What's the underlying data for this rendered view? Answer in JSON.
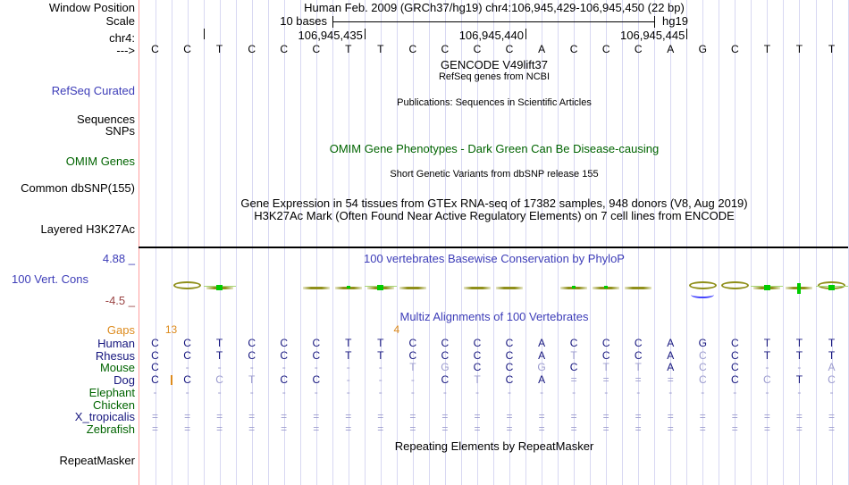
{
  "header": {
    "title": "Human Feb. 2009 (GRCh37/hg19)   chr4:106,945,429-106,945,450 (22 bp)",
    "scale_text": "10 bases",
    "assembly": "hg19",
    "ruler_ticks": [
      {
        "at": 2,
        "label": ""
      },
      {
        "at": 7,
        "label": "106,945,435"
      },
      {
        "at": 12,
        "label": "106,945,440"
      },
      {
        "at": 17,
        "label": "106,945,445"
      }
    ],
    "sequence": "CCTCCCTTCCCCACCCAGCTTT"
  },
  "labels": {
    "window_position": "Window Position",
    "scale": "Scale",
    "chrom": "chr4:",
    "strand": "--->",
    "refseq_curated": "RefSeq Curated",
    "sequences": "Sequences",
    "snps": "SNPs",
    "omim_genes": "OMIM Genes",
    "common_dbsnp": "Common dbSNP(155)",
    "layered_h3k27ac": "Layered H3K27Ac",
    "cons_upper": "4.88 _",
    "cons_name": "100 Vert. Cons",
    "cons_lower": "-4.5 _",
    "repeatmasker": "RepeatMasker"
  },
  "center_texts": {
    "gencode": "GENCODE V49lift37",
    "refseq_sub": "RefSeq genes from NCBI",
    "publications": "Publications: Sequences in Scientific Articles",
    "omim_title": "OMIM Gene Phenotypes - Dark Green Can Be Disease-causing",
    "dbsnp_title": "Short Genetic Variants from dbSNP release 155",
    "gtex_title": "Gene Expression in 54 tissues from GTEx RNA-seq of 17382 samples, 948 donors (V8, Aug 2019)",
    "h3k27ac_title": "H3K27Ac Mark (Often Found Near Active Regulatory Elements) on 7 cell lines from ENCODE",
    "phylop_title": "100 vertebrates Basewise Conservation by PhyloP",
    "multiz_title": "Multiz Alignments of 100 Vertebrates",
    "repeat_title": "Repeating Elements by RepeatMasker"
  },
  "conservation": {
    "upper_limit": "4.88",
    "lower_limit": "-4.5",
    "glyphs": [
      {
        "col": 2,
        "kind": "ellipse"
      },
      {
        "col": 3,
        "kind": "bar",
        "green": "square"
      },
      {
        "col": 6,
        "kind": "bar"
      },
      {
        "col": 7,
        "kind": "bar",
        "green": "dot"
      },
      {
        "col": 8,
        "kind": "bar",
        "green": "square"
      },
      {
        "col": 9,
        "kind": "bar"
      },
      {
        "col": 11,
        "kind": "bar"
      },
      {
        "col": 12,
        "kind": "bar"
      },
      {
        "col": 14,
        "kind": "bar",
        "green": "dot"
      },
      {
        "col": 15,
        "kind": "bar",
        "green": "dot"
      },
      {
        "col": 16,
        "kind": "bar"
      },
      {
        "col": 18,
        "kind": "ellipse",
        "blue": true
      },
      {
        "col": 19,
        "kind": "ellipse"
      },
      {
        "col": 20,
        "kind": "bar",
        "green": "square"
      },
      {
        "col": 21,
        "kind": "bar",
        "green": "tall"
      },
      {
        "col": 22,
        "kind": "ellipse",
        "green": "square"
      }
    ]
  },
  "alignment": {
    "gaps_label": "Gaps",
    "gap_counts": [
      {
        "after_col": 1,
        "count": "13"
      },
      {
        "after_col": 8,
        "count": "4"
      }
    ],
    "insert_markers": [
      {
        "row_index": 3,
        "after_col": 1
      }
    ],
    "rows": [
      {
        "label": "Human",
        "color": "navy",
        "cells": "CCTCCCTTCCCCACCCAGCTTT"
      },
      {
        "label": "Rhesus",
        "color": "navy",
        "cells": "CCTCCCTTCCCCAtCCAcCTTT"
      },
      {
        "label": "Mouse",
        "color": "green",
        "cells": "C-------tgCCgCttAcC--a"
      },
      {
        "label": "Dog",
        "color": "navy",
        "cells": "CCctCC---CtCA====cCcTc"
      },
      {
        "label": "Elephant",
        "color": "green",
        "cells": "----------------------"
      },
      {
        "label": "Chicken",
        "color": "green",
        "cells": "......................"
      },
      {
        "label": "X_tropicalis",
        "color": "navy",
        "cells": "======================"
      },
      {
        "label": "Zebrafish",
        "color": "green",
        "cells": "======================"
      }
    ]
  },
  "colors": {
    "navy_base": "#16167e",
    "light_base": "#9c9cce",
    "track_title_blue": "#3d3db8",
    "dark_green": "#006400",
    "orange": "#dd8b1e",
    "maroon": "#9a4444",
    "olive": "#8f8f1a",
    "bright_green": "#00cc00",
    "gridline": "#d8d8f2",
    "window_edge_salmon": "#ff9e9e"
  }
}
